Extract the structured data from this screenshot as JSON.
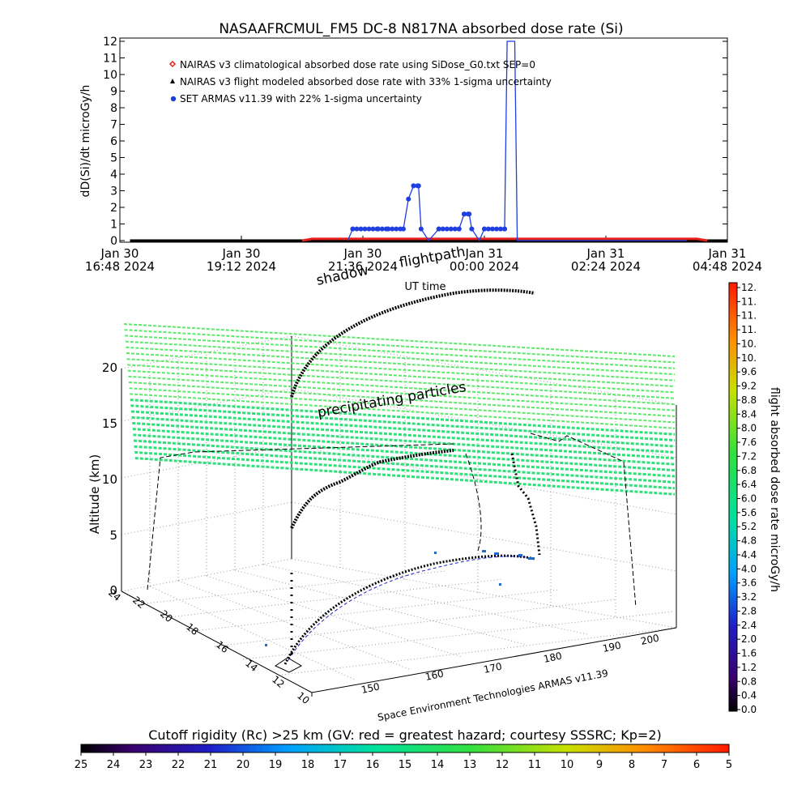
{
  "chart_data": [
    {
      "type": "line",
      "title": "NASAAFRCMUL_FM5 DC-8   N817NA absorbed dose rate (Si)",
      "ylabel": "dD(Si)/dt microGy/h",
      "xlabel": "UT time",
      "ylim": [
        0,
        12
      ],
      "yticks": [
        "0",
        "1",
        "2",
        "3",
        "4",
        "5",
        "6",
        "7",
        "8",
        "9",
        "10",
        "11",
        "12"
      ],
      "xticks": [
        {
          "line1": "Jan 30",
          "line2": "16:48 2024"
        },
        {
          "line1": "Jan 30",
          "line2": "19:12 2024"
        },
        {
          "line1": "Jan 30",
          "line2": "21:36 2024"
        },
        {
          "line1": "Jan 31",
          "line2": "00:00 2024"
        },
        {
          "line1": "Jan 31",
          "line2": "02:24 2024"
        },
        {
          "line1": "Jan 31",
          "line2": "04:48 2024"
        }
      ],
      "legend": [
        {
          "label": "NAIRAS v3 climatological absorbed dose rate using SiDose_G0.txt SEP=0",
          "marker": "diamond",
          "color": "#e8201c"
        },
        {
          "label": "NAIRAS v3 flight modeled absorbed dose rate with 33% 1-sigma uncertainty",
          "marker": "triangle",
          "color": "#000000"
        },
        {
          "label": "SET ARMAS v11.39 with 22% 1-sigma uncertainty",
          "marker": "circle",
          "color": "#1f3fe0"
        }
      ],
      "series": [
        {
          "name": "SET ARMAS v11.39 with 22% 1-sigma uncertainty",
          "color": "#1f3fe0",
          "points": [
            [
              21.3,
              0
            ],
            [
              21.4,
              0.7
            ],
            [
              21.9,
              0.7
            ],
            [
              22.1,
              0.7
            ],
            [
              22.4,
              0.7
            ],
            [
              22.5,
              2.5
            ],
            [
              22.6,
              3.3
            ],
            [
              22.7,
              3.3
            ],
            [
              22.75,
              0.7
            ],
            [
              22.9,
              0
            ],
            [
              23.1,
              0.7
            ],
            [
              23.5,
              0.7
            ],
            [
              23.6,
              1.6
            ],
            [
              23.7,
              1.6
            ],
            [
              23.75,
              0.7
            ],
            [
              23.9,
              0
            ],
            [
              24.0,
              0.7
            ],
            [
              24.4,
              0.7
            ],
            [
              24.45,
              12
            ],
            [
              24.5,
              12
            ],
            [
              24.6,
              12
            ],
            [
              24.65,
              0
            ],
            [
              28.0,
              0
            ]
          ]
        },
        {
          "name": "NAIRAS v3 climatological absorbed dose rate using SiDose_G0.txt SEP=0",
          "color": "#e8201c",
          "points": [
            [
              20.4,
              0
            ],
            [
              20.6,
              0.1
            ],
            [
              28.2,
              0.1
            ],
            [
              28.4,
              0
            ]
          ]
        },
        {
          "name": "NAIRAS v3 flight modeled absorbed dose rate with 33% 1-sigma uncertainty",
          "color": "#000000",
          "points": [
            [
              17.0,
              0
            ],
            [
              28.8,
              0
            ]
          ]
        }
      ]
    },
    {
      "type": "scatter",
      "title": "",
      "zlabel": "Altitude (km)",
      "zticks": [
        "0",
        "5",
        "10",
        "15",
        "20"
      ],
      "lat_ticks": [
        "10",
        "12",
        "14",
        "16",
        "18",
        "20",
        "22",
        "24"
      ],
      "lon_ticks": [
        "150",
        "160",
        "170",
        "180",
        "190",
        "200"
      ],
      "lon_axis_label": "Space Environment Technologies ARMAS v11.39",
      "annotations": [
        "shadow",
        "flightpath",
        "precipitating particles"
      ]
    }
  ],
  "colorbar_right": {
    "label": "flight absorbed dose rate microGy/h",
    "ticks": [
      "12.",
      "11.",
      "11.",
      "11.",
      "10.",
      "10.",
      "9.6",
      "9.2",
      "8.8",
      "8.4",
      "8.0",
      "7.6",
      "7.2",
      "6.8",
      "6.4",
      "6.0",
      "5.6",
      "5.2",
      "4.8",
      "4.4",
      "4.0",
      "3.6",
      "3.2",
      "2.8",
      "2.4",
      "2.0",
      "1.6",
      "1.2",
      "0.8",
      "0.4",
      "0.0"
    ]
  },
  "colorbar_bottom": {
    "title": "Cutoff rigidity (Rc) >25 km (GV: red = greatest hazard; courtesy SSSRC; Kp=2)",
    "ticks": [
      "25",
      "24",
      "23",
      "22",
      "21",
      "20",
      "19",
      "18",
      "17",
      "16",
      "15",
      "14",
      "13",
      "12",
      "11",
      "10",
      "9",
      "8",
      "7",
      "6",
      "5"
    ]
  },
  "colors": {
    "grid_green": "#2fe07a",
    "armas_blue": "#1f3fe0",
    "nairas_red": "#e8201c"
  }
}
